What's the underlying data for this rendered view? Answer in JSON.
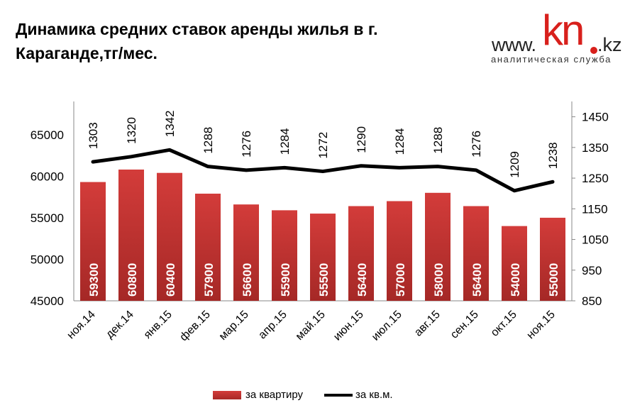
{
  "title": "Динамика средних ставок аренды жилья в г. Караганде,тг/мес.",
  "logo": {
    "www": "www.",
    "kn": "kn",
    "kz": ".kz",
    "sub": "аналитическая служба"
  },
  "chart_data": {
    "type": "bar+line",
    "title": "Динамика средних ставок аренды жилья в г. Караганде,тг/мес.",
    "categories": [
      "ноя.14",
      "дек.14",
      "янв.15",
      "фев.15",
      "мар.15",
      "апр.15",
      "май.15",
      "июн.15",
      "июл.15",
      "авг.15",
      "сен.15",
      "окт.15",
      "ноя.15"
    ],
    "series": [
      {
        "name": "за квартиру",
        "type": "bar",
        "axis": "left",
        "color": "#c8312f",
        "values": [
          59300,
          60800,
          60400,
          57900,
          56600,
          55900,
          55500,
          56400,
          57000,
          58000,
          56400,
          54000,
          55000
        ]
      },
      {
        "name": "за кв.м.",
        "type": "line",
        "axis": "right",
        "color": "#000000",
        "values": [
          1303,
          1320,
          1342,
          1288,
          1276,
          1284,
          1272,
          1290,
          1284,
          1288,
          1276,
          1209,
          1238
        ]
      }
    ],
    "y_left": {
      "ticks": [
        45000,
        50000,
        55000,
        60000,
        65000
      ],
      "range": [
        45000,
        69000
      ]
    },
    "y_right": {
      "ticks": [
        850,
        950,
        1050,
        1150,
        1250,
        1350,
        1450
      ],
      "range": [
        850,
        1500
      ]
    },
    "legend": "bottom",
    "grid": false
  }
}
